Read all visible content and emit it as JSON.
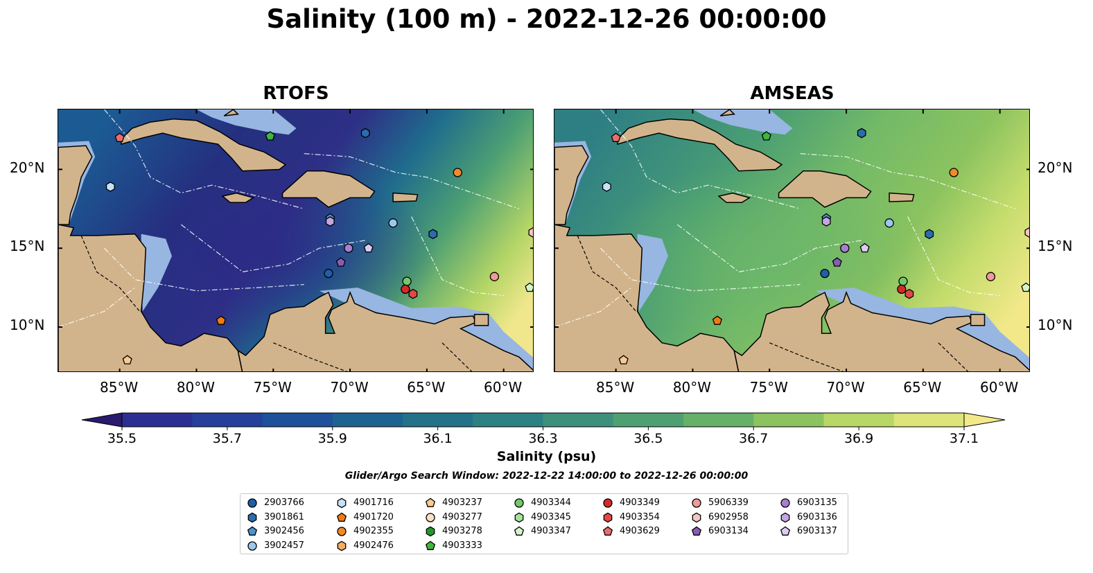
{
  "title": "Salinity (100 m) - 2022-12-26 00:00:00",
  "panels": [
    {
      "title": "RTOFS",
      "variant": "fresh"
    },
    {
      "title": "AMSEAS",
      "variant": "salty"
    }
  ],
  "axes": {
    "x_ticks": [
      "85°W",
      "80°W",
      "75°W",
      "70°W",
      "65°W",
      "60°W"
    ],
    "y_ticks": [
      "20°N",
      "15°N",
      "10°N"
    ]
  },
  "colorbar": {
    "ticks": [
      "35.5",
      "35.7",
      "35.9",
      "36.1",
      "36.3",
      "36.5",
      "36.7",
      "36.9",
      "37.1"
    ],
    "label": "Salinity (psu)",
    "colors": [
      "#2a1a6e",
      "#2b2f92",
      "#263f9a",
      "#1f509a",
      "#1d6392",
      "#237289",
      "#2d8183",
      "#3d917c",
      "#4ea072",
      "#67b069",
      "#8cc35f",
      "#b7d766",
      "#dce47a",
      "#f4e98a"
    ]
  },
  "search_window": "Glider/Argo Search Window: 2022-12-22 14:00:00 to 2022-12-26 00:00:00",
  "map_colors": {
    "land": "#d2b48c",
    "ocean_shallow": "#97b6e1",
    "pacific": "#2a1a6e"
  },
  "floats": [
    {
      "id": "2903766",
      "marker": "circle",
      "color": "#1f5fa8"
    },
    {
      "id": "3901861",
      "marker": "hexagon",
      "color": "#2b6cb0"
    },
    {
      "id": "3902456",
      "marker": "pentagon",
      "color": "#4a94d0"
    },
    {
      "id": "3902457",
      "marker": "circle",
      "color": "#9cc7ee"
    },
    {
      "id": "4901716",
      "marker": "hexagon",
      "color": "#c6e2f7"
    },
    {
      "id": "4901720",
      "marker": "pentagon",
      "color": "#f07a12"
    },
    {
      "id": "4902355",
      "marker": "circle",
      "color": "#f28a2a"
    },
    {
      "id": "4902476",
      "marker": "hexagon",
      "color": "#f6ad5f"
    },
    {
      "id": "4903237",
      "marker": "pentagon",
      "color": "#fbc990"
    },
    {
      "id": "4903277",
      "marker": "circle",
      "color": "#fde0c2"
    },
    {
      "id": "4903278",
      "marker": "hexagon",
      "color": "#1f9a2a"
    },
    {
      "id": "4903333",
      "marker": "pentagon",
      "color": "#3fb540"
    },
    {
      "id": "4903344",
      "marker": "circle",
      "color": "#72c96a"
    },
    {
      "id": "4903345",
      "marker": "hexagon",
      "color": "#a6e39a"
    },
    {
      "id": "4903347",
      "marker": "pentagon",
      "color": "#d4f5cc"
    },
    {
      "id": "4903349",
      "marker": "circle",
      "color": "#d42a2a"
    },
    {
      "id": "4903354",
      "marker": "hexagon",
      "color": "#e04848"
    },
    {
      "id": "4903629",
      "marker": "pentagon",
      "color": "#ea6d6d"
    },
    {
      "id": "5906339",
      "marker": "circle",
      "color": "#f29a9a"
    },
    {
      "id": "6902958",
      "marker": "hexagon",
      "color": "#f7c3c3"
    },
    {
      "id": "6903134",
      "marker": "pentagon",
      "color": "#8a5ab4"
    },
    {
      "id": "6903135",
      "marker": "circle",
      "color": "#a680cc"
    },
    {
      "id": "6903136",
      "marker": "hexagon",
      "color": "#c3a6e2"
    },
    {
      "id": "6903137",
      "marker": "pentagon",
      "color": "#ddcaf2"
    }
  ],
  "float_positions": [
    {
      "id": "4903629",
      "lon": -85.0,
      "lat": 22.0
    },
    {
      "id": "4903333",
      "lon": -75.2,
      "lat": 22.1
    },
    {
      "id": "3901861",
      "lon": -69.0,
      "lat": 22.3
    },
    {
      "id": "4901716",
      "lon": -85.6,
      "lat": 18.9
    },
    {
      "id": "4902355",
      "lon": -63.0,
      "lat": 19.8
    },
    {
      "id": "3902456",
      "lon": -71.3,
      "lat": 16.9
    },
    {
      "id": "6903136",
      "lon": -71.3,
      "lat": 16.7
    },
    {
      "id": "3902457",
      "lon": -67.2,
      "lat": 16.6
    },
    {
      "id": "3901861",
      "lon": -64.6,
      "lat": 15.9
    },
    {
      "id": "6902958",
      "lon": -58.1,
      "lat": 16.0
    },
    {
      "id": "6903135",
      "lon": -70.1,
      "lat": 15.0
    },
    {
      "id": "6903137",
      "lon": -68.8,
      "lat": 15.0
    },
    {
      "id": "6903134",
      "lon": -70.6,
      "lat": 14.1
    },
    {
      "id": "2903766",
      "lon": -71.4,
      "lat": 13.4
    },
    {
      "id": "4903344",
      "lon": -66.3,
      "lat": 12.9
    },
    {
      "id": "4903349",
      "lon": -66.4,
      "lat": 12.4
    },
    {
      "id": "4903354",
      "lon": -65.9,
      "lat": 12.1
    },
    {
      "id": "5906339",
      "lon": -60.6,
      "lat": 13.2
    },
    {
      "id": "4903347",
      "lon": -58.3,
      "lat": 12.5
    },
    {
      "id": "4901720",
      "lon": -78.4,
      "lat": 10.4
    },
    {
      "id": "4903237",
      "lon": -84.5,
      "lat": 7.9
    }
  ]
}
